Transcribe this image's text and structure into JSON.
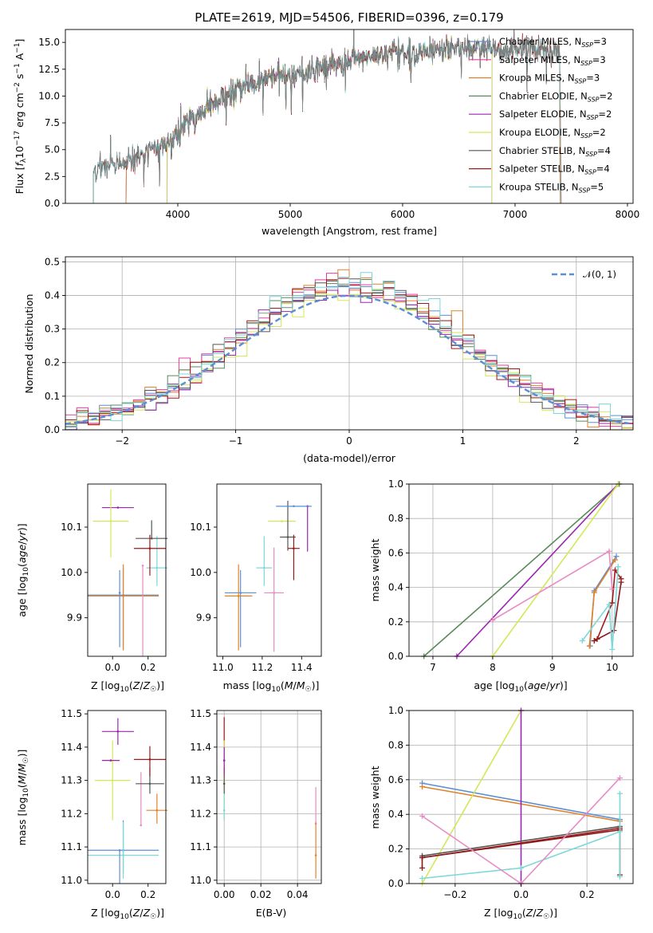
{
  "chart_data": [
    {
      "id": "spectrum",
      "type": "line",
      "title": "PLATE=2619, MJD=54506, FIBERID=0396, z=0.179",
      "xlabel": "wavelength [Angstrom, rest frame]",
      "ylabel": "Flux [f_λ 10^{-17} erg cm^{-2} s^{-1} A^{-1}]",
      "xlim": [
        3000,
        8050
      ],
      "ylim": [
        0,
        16.2
      ],
      "xticks": [
        4000,
        5000,
        6000,
        7000,
        8000
      ],
      "yticks": [
        0.0,
        2.5,
        5.0,
        7.5,
        10.0,
        12.5,
        15.0
      ],
      "observed_envelope": {
        "x": [
          3250,
          3400,
          3550,
          3700,
          3850,
          3950,
          4050,
          4200,
          4350,
          4500,
          4700,
          4900,
          5100,
          5300,
          5500,
          5700,
          5900,
          6100,
          6300,
          6500,
          6700,
          6900,
          7100,
          7300,
          7400
        ],
        "y": [
          3.0,
          3.6,
          3.7,
          4.6,
          5.4,
          6.0,
          7.3,
          8.4,
          9.5,
          10.4,
          11.2,
          11.8,
          12.2,
          12.8,
          13.0,
          13.6,
          14.2,
          14.0,
          14.2,
          14.6,
          14.4,
          14.2,
          14.4,
          14.2,
          14.0
        ]
      },
      "model_ranges": [
        {
          "name": "Chabrier MILES",
          "nssp": "3",
          "start": 3540,
          "end": 7410
        },
        {
          "name": "Salpeter MILES",
          "nssp": "3",
          "start": 3540,
          "end": 7410
        },
        {
          "name": "Kroupa MILES",
          "nssp": "3",
          "start": 3540,
          "end": 7410
        },
        {
          "name": "Chabrier ELODIE",
          "nssp": "2",
          "start": 3905,
          "end": 6795
        },
        {
          "name": "Salpeter ELODIE",
          "nssp": "2",
          "start": 3905,
          "end": 6795
        },
        {
          "name": "Kroupa ELODIE",
          "nssp": "2",
          "start": 3905,
          "end": 6795
        },
        {
          "name": "Chabrier STELIB",
          "nssp": "4",
          "start": 3250,
          "end": 7400
        },
        {
          "name": "Salpeter STELIB",
          "nssp": "4",
          "start": 3250,
          "end": 7400
        },
        {
          "name": "Kroupa STELIB",
          "nssp": "5",
          "start": 3250,
          "end": 7400
        }
      ]
    },
    {
      "id": "residuals",
      "type": "line",
      "xlabel": "(data-model)/error",
      "ylabel": "Normed distribution",
      "xlim": [
        -2.5,
        2.5
      ],
      "ylim": [
        0,
        0.515
      ],
      "xticks": [
        -2,
        -1,
        0,
        1,
        2
      ],
      "yticks": [
        0.0,
        0.1,
        0.2,
        0.3,
        0.4,
        0.5
      ],
      "reference_curve": {
        "name": "𝒩(0, 1)",
        "style": "dashed",
        "mean": 0,
        "sigma": 1
      },
      "histogram_bin_width": 0.1
    },
    {
      "id": "age_vs_Z",
      "type": "scatter",
      "xlabel": "Z [log10(Z/Z☉)]",
      "ylabel": "age [log10(age/yr)]",
      "xlim": [
        -0.14,
        0.3
      ],
      "ylim": [
        9.815,
        10.195
      ],
      "xticks": [
        0.0,
        0.2
      ],
      "yticks": [
        9.9,
        10.0,
        10.1
      ],
      "points": [
        {
          "x": 0.06,
          "y": 9.95,
          "xerr": 0.2,
          "yerr_lo": 0.12,
          "yerr_hi": 0.06
        },
        {
          "x": 0.25,
          "y": 10.01,
          "xerr": 0.06,
          "yerr_lo": 0.04,
          "yerr_hi": 0.07
        },
        {
          "x": 0.06,
          "y": 9.948,
          "xerr": 0.2,
          "yerr_lo": 0.12,
          "yerr_hi": 0.07
        },
        {
          "x": 0.17,
          "y": 10.015,
          "xerr": 0.0,
          "yerr_lo": 0.2,
          "yerr_hi": 0.0
        },
        {
          "x": 0.03,
          "y": 10.143,
          "xerr": 0.09,
          "yerr_lo": 0.0,
          "yerr_hi": 0.0
        },
        {
          "x": -0.01,
          "y": 10.113,
          "xerr": 0.1,
          "yerr_lo": 0.08,
          "yerr_hi": 0.07
        },
        {
          "x": 0.22,
          "y": 10.075,
          "xerr": 0.09,
          "yerr_lo": 0.0,
          "yerr_hi": 0.04
        },
        {
          "x": 0.21,
          "y": 10.053,
          "xerr": 0.09,
          "yerr_lo": 0.06,
          "yerr_hi": 0.03
        },
        {
          "x": 0.04,
          "y": 9.955,
          "xerr": 0.0,
          "yerr_lo": 0.12,
          "yerr_hi": 0.05
        }
      ]
    },
    {
      "id": "age_vs_mass",
      "type": "scatter",
      "xlabel": "mass [log10(M/M☉)]",
      "ylabel": "",
      "xlim": [
        10.97,
        11.5
      ],
      "ylim": [
        9.815,
        10.195
      ],
      "xticks": [
        11.0,
        11.2,
        11.4
      ],
      "yticks": [
        9.9,
        10.0,
        10.1
      ],
      "points": [
        {
          "x": 11.09,
          "y": 9.955,
          "xerr": 0.08,
          "yerr_lo": 0.12,
          "yerr_hi": 0.05
        },
        {
          "x": 11.21,
          "y": 10.01,
          "xerr": 0.04,
          "yerr_lo": 0.04,
          "yerr_hi": 0.07
        },
        {
          "x": 11.08,
          "y": 9.948,
          "xerr": 0.07,
          "yerr_lo": 0.12,
          "yerr_hi": 0.07
        },
        {
          "x": 11.26,
          "y": 9.955,
          "xerr": 0.05,
          "yerr_lo": 0.13,
          "yerr_hi": 0.1
        },
        {
          "x": 11.43,
          "y": 10.146,
          "xerr": 0.0,
          "yerr_lo": 0.1,
          "yerr_hi": 0.0
        },
        {
          "x": 11.3,
          "y": 10.113,
          "xerr": 0.07,
          "yerr_lo": 0.0,
          "yerr_hi": 0.0
        },
        {
          "x": 11.33,
          "y": 10.078,
          "xerr": 0.04,
          "yerr_lo": 0.03,
          "yerr_hi": 0.08
        },
        {
          "x": 11.36,
          "y": 10.053,
          "xerr": 0.03,
          "yerr_lo": 0.07,
          "yerr_hi": 0.03
        },
        {
          "x": 11.36,
          "y": 10.146,
          "xerr": 0.09,
          "yerr_lo": 0.0,
          "yerr_hi": 0.0
        }
      ]
    },
    {
      "id": "weight_vs_age",
      "type": "line",
      "xlabel": "age [log10(age/yr)]",
      "ylabel": "mass weight",
      "xlim": [
        6.6,
        10.35
      ],
      "ylim": [
        0,
        1.0
      ],
      "xticks": [
        7,
        8,
        9,
        10
      ],
      "yticks": [
        0.0,
        0.2,
        0.4,
        0.6,
        0.8,
        1.0
      ],
      "series": [
        {
          "points": [
            [
              10.07,
              0.58
            ],
            [
              9.7,
              0.38
            ],
            [
              9.63,
              0.06
            ]
          ]
        },
        {
          "points": [
            [
              10.05,
              0.56
            ],
            [
              9.7,
              0.37
            ],
            [
              9.62,
              0.06
            ]
          ]
        },
        {
          "points": [
            [
              6.85,
              0.0
            ],
            [
              10.12,
              1.0
            ]
          ]
        },
        {
          "points": [
            [
              7.4,
              0.0
            ],
            [
              10.1,
              1.0
            ]
          ]
        },
        {
          "points": [
            [
              8.0,
              0.0
            ],
            [
              10.1,
              1.0
            ]
          ]
        },
        {
          "points": [
            [
              9.75,
              0.1
            ],
            [
              10.0,
              0.31
            ],
            [
              10.05,
              0.5
            ],
            [
              10.15,
              0.45
            ]
          ]
        },
        {
          "points": [
            [
              9.7,
              0.09
            ],
            [
              10.03,
              0.15
            ],
            [
              10.15,
              0.43
            ]
          ]
        },
        {
          "points": [
            [
              9.5,
              0.09
            ],
            [
              9.95,
              0.3
            ],
            [
              10.0,
              0.04
            ],
            [
              10.1,
              0.52
            ]
          ]
        },
        {
          "points": [
            [
              8.0,
              0.21
            ],
            [
              9.95,
              0.61
            ],
            [
              10.0,
              0.39
            ]
          ]
        }
      ]
    },
    {
      "id": "mass_vs_Z",
      "type": "scatter",
      "xlabel": "Z [log10(Z/Z☉)]",
      "ylabel": "mass [log10(M/M☉)]",
      "xlim": [
        -0.14,
        0.3
      ],
      "ylim": [
        10.99,
        11.51
      ],
      "xticks": [
        0.0,
        0.2
      ],
      "yticks": [
        11.0,
        11.1,
        11.2,
        11.3,
        11.4,
        11.5
      ],
      "points": [
        {
          "x": 0.06,
          "y": 11.09,
          "xerr": 0.2,
          "yerr_lo": 0.07,
          "yerr_hi": 0.09
        },
        {
          "x": 0.06,
          "y": 11.075,
          "xerr": 0.2,
          "yerr_lo": 0.07,
          "yerr_hi": 0.1
        },
        {
          "x": 0.25,
          "y": 11.21,
          "xerr": 0.06,
          "yerr_lo": 0.04,
          "yerr_hi": 0.05
        },
        {
          "x": 0.16,
          "y": 11.165,
          "xerr": 0.0,
          "yerr_lo": 0.0,
          "yerr_hi": 0.16
        },
        {
          "x": 0.03,
          "y": 11.447,
          "xerr": 0.09,
          "yerr_lo": 0.04,
          "yerr_hi": 0.04
        },
        {
          "x": 0.0,
          "y": 11.3,
          "xerr": 0.1,
          "yerr_lo": 0.12,
          "yerr_hi": 0.12
        },
        {
          "x": 0.21,
          "y": 11.29,
          "xerr": 0.08,
          "yerr_lo": 0.03,
          "yerr_hi": 0.05
        },
        {
          "x": 0.21,
          "y": 11.363,
          "xerr": 0.09,
          "yerr_lo": 0.05,
          "yerr_hi": 0.04
        },
        {
          "x": 0.04,
          "y": 11.09,
          "xerr": 0.0,
          "yerr_lo": 0.1,
          "yerr_hi": 0.0
        },
        {
          "x": -0.01,
          "y": 11.36,
          "xerr": 0.05,
          "yerr_lo": 0.0,
          "yerr_hi": 0.0
        }
      ]
    },
    {
      "id": "mass_vs_ebv",
      "type": "scatter",
      "xlabel": "E(B-V)",
      "ylabel": "",
      "xlim": [
        -0.004,
        0.053
      ],
      "ylim": [
        10.99,
        11.51
      ],
      "xticks": [
        0.0,
        0.02,
        0.04
      ],
      "yticks": [
        11.0,
        11.1,
        11.2,
        11.3,
        11.4,
        11.5
      ],
      "points": [
        {
          "x": 0.0,
          "y": 11.36,
          "yerr_lo": 0.05,
          "yerr_hi": 0.13
        },
        {
          "x": 0.0,
          "y": 11.3,
          "yerr_lo": 0.12,
          "yerr_hi": 0.12
        },
        {
          "x": 0.0,
          "y": 11.21,
          "yerr_lo": 0.03,
          "yerr_hi": 0.05
        },
        {
          "x": 0.0,
          "y": 11.29,
          "yerr_lo": 0.03,
          "yerr_hi": 0.05
        },
        {
          "x": 0.0,
          "y": 11.36,
          "yerr_lo": 0.04,
          "yerr_hi": 0.04
        },
        {
          "x": 0.05,
          "y": 11.17,
          "yerr_lo": 0.0,
          "yerr_hi": 0.11
        },
        {
          "x": 0.05,
          "y": 11.075,
          "yerr_lo": 0.07,
          "yerr_hi": 0.1
        }
      ]
    },
    {
      "id": "weight_vs_Z",
      "type": "line",
      "xlabel": "Z [log10(Z/Z☉)]",
      "ylabel": "mass weight",
      "xlim": [
        -0.34,
        0.34
      ],
      "ylim": [
        0,
        1.0
      ],
      "xticks": [
        -0.2,
        0.0,
        0.2
      ],
      "yticks": [
        0.0,
        0.2,
        0.4,
        0.6,
        0.8,
        1.0
      ],
      "series": [
        {
          "points": [
            [
              -0.3,
              0.58
            ],
            [
              0.3,
              0.37
            ]
          ]
        },
        {
          "points": [
            [
              -0.3,
              0.56
            ],
            [
              0.3,
              0.36
            ]
          ]
        },
        {
          "points": [
            [
              -0.3,
              0.0
            ],
            [
              0.0,
              1.0
            ]
          ]
        },
        {
          "points": [
            [
              0.0,
              0.0
            ],
            [
              0.0,
              1.0
            ]
          ]
        },
        {
          "points": [
            [
              -0.3,
              0.15
            ],
            [
              0.3,
              0.32
            ]
          ]
        },
        {
          "points": [
            [
              -0.3,
              0.16
            ],
            [
              0.3,
              0.33
            ]
          ]
        },
        {
          "points": [
            [
              -0.3,
              0.09
            ],
            [
              -0.3,
              0.15
            ],
            [
              0.3,
              0.31
            ],
            [
              0.3,
              0.05
            ]
          ]
        },
        {
          "points": [
            [
              -0.3,
              0.03
            ],
            [
              0.0,
              0.09
            ],
            [
              0.3,
              0.3
            ],
            [
              0.3,
              0.04
            ],
            [
              0.3,
              0.52
            ]
          ]
        },
        {
          "points": [
            [
              -0.3,
              0.39
            ],
            [
              0.0,
              0.0
            ],
            [
              0.3,
              0.61
            ]
          ]
        }
      ]
    }
  ],
  "legend": [
    {
      "label": "Chabrier MILES, N",
      "sub": "SSP",
      "val": "=3",
      "color": "#5a8fd6"
    },
    {
      "label": "Salpeter MILES, N",
      "sub": "SSP",
      "val": "=3",
      "color": "#e83d9c"
    },
    {
      "label": "Kroupa MILES, N",
      "sub": "SSP",
      "val": "=3",
      "color": "#e0832b"
    },
    {
      "label": "Chabrier ELODIE, N",
      "sub": "SSP",
      "val": "=2",
      "color": "#5a8a5a"
    },
    {
      "label": "Salpeter ELODIE, N",
      "sub": "SSP",
      "val": "=2",
      "color": "#9b27b0"
    },
    {
      "label": "Kroupa ELODIE, N",
      "sub": "SSP",
      "val": "=2",
      "color": "#d4e857"
    },
    {
      "label": "Chabrier STELIB, N",
      "sub": "SSP",
      "val": "=4",
      "color": "#555555"
    },
    {
      "label": "Salpeter STELIB, N",
      "sub": "SSP",
      "val": "=4",
      "color": "#a01818"
    },
    {
      "label": "Kroupa STELIB, N",
      "sub": "SSP",
      "val": "=5",
      "color": "#7dd8d8"
    }
  ],
  "point_colors": [
    "#5a8fd6",
    "#7dd8d8",
    "#e0832b",
    "#e88bc4",
    "#9b27b0",
    "#d4e857",
    "#555555",
    "#a01818",
    "#5a8fd6",
    "#9b27b0"
  ],
  "weight_age_colors": [
    "#5a8fd6",
    "#e0832b",
    "#5a8a5a",
    "#9b27b0",
    "#d4e857",
    "#a01818",
    "#8b1a1a",
    "#7dd8d8",
    "#e88bc4"
  ],
  "weight_Z_colors": [
    "#5a8fd6",
    "#e0832b",
    "#d4e857",
    "#9b27b0",
    "#a01818",
    "#555555",
    "#8b1a1a",
    "#7dd8d8",
    "#e88bc4"
  ],
  "ebv_colors": [
    "#a01818",
    "#d4e857",
    "#7dd8d8",
    "#555555",
    "#9b27b0",
    "#e88bc4",
    "#e0832b"
  ],
  "hist_colors": [
    "#5a8fd6",
    "#e83d9c",
    "#e0832b",
    "#5a8a5a",
    "#9b27b0",
    "#d4e857",
    "#555555",
    "#a01818",
    "#7dd8d8"
  ],
  "norm_label": "𝒩(0, 1)",
  "norm_color": "#5a8fd6"
}
